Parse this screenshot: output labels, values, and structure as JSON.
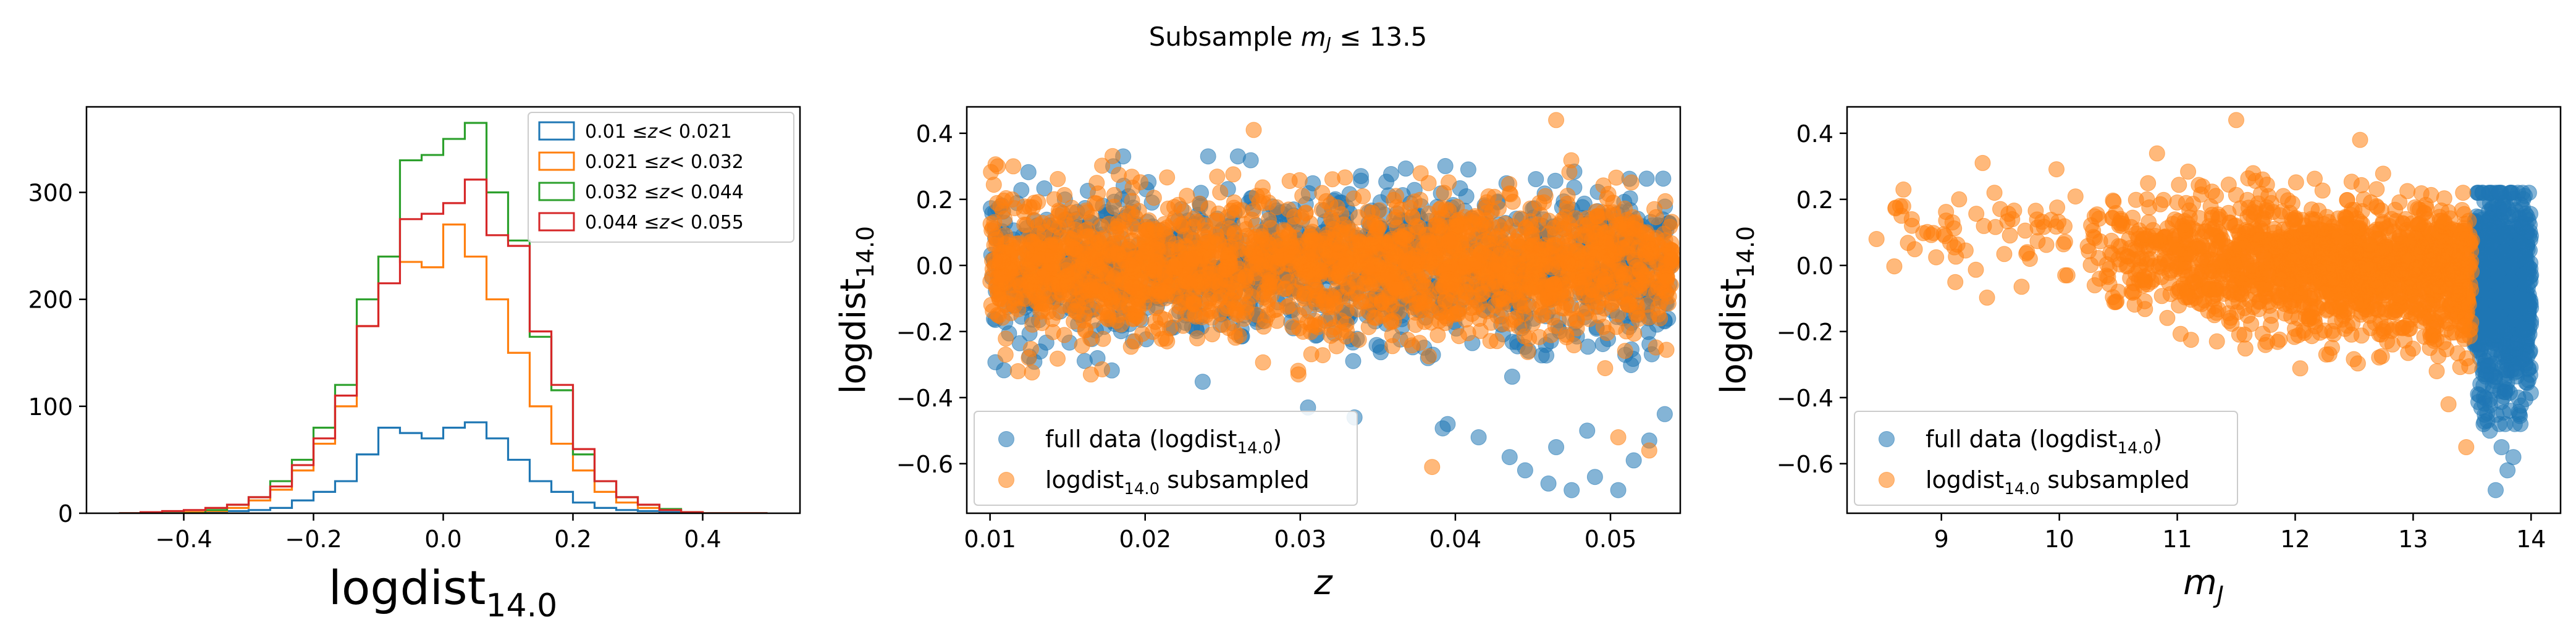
{
  "suptitle": {
    "prefix": "Subsample ",
    "var": "m",
    "sub": "J",
    "suffix": " ≤ 13.5"
  },
  "colors": {
    "blue": "#1f77b4",
    "orange": "#ff7f0e",
    "green": "#2ca02c",
    "red": "#d62728"
  },
  "chart_data": [
    {
      "type": "histogram",
      "xlabel": {
        "main": "logdist",
        "sub": "14.0"
      },
      "ylabel": "",
      "xlim": [
        -0.55,
        0.55
      ],
      "ylim": [
        0,
        380
      ],
      "xticks": [
        "−0.4",
        "−0.2",
        "0.0",
        "0.2",
        "0.4"
      ],
      "xtick_values": [
        -0.4,
        -0.2,
        0.0,
        0.2,
        0.4
      ],
      "yticks": [
        "0",
        "100",
        "200",
        "300"
      ],
      "ytick_values": [
        0,
        100,
        200,
        300
      ],
      "legend_position": "top-right",
      "bin_edges": [
        -0.5,
        -0.4667,
        -0.4333,
        -0.4,
        -0.3667,
        -0.3333,
        -0.3,
        -0.2667,
        -0.2333,
        -0.2,
        -0.1667,
        -0.1333,
        -0.1,
        -0.0667,
        -0.0333,
        0.0,
        0.0333,
        0.0667,
        0.1,
        0.1333,
        0.1667,
        0.2,
        0.2333,
        0.2667,
        0.3,
        0.3333,
        0.3667,
        0.4,
        0.4333,
        0.4667,
        0.5
      ],
      "series": [
        {
          "name": "0.01 ≤z< 0.021",
          "color": "#1f77b4",
          "counts": [
            0,
            0,
            0,
            0,
            1,
            2,
            3,
            5,
            12,
            20,
            30,
            55,
            80,
            75,
            70,
            80,
            85,
            70,
            50,
            30,
            20,
            10,
            5,
            3,
            2,
            1,
            0,
            0,
            0,
            0
          ]
        },
        {
          "name": "0.021 ≤z< 0.032",
          "color": "#ff7f0e",
          "counts": [
            0,
            0,
            0,
            1,
            2,
            5,
            12,
            22,
            40,
            65,
            100,
            175,
            240,
            235,
            230,
            270,
            240,
            200,
            150,
            100,
            65,
            40,
            20,
            10,
            5,
            3,
            1,
            0,
            0,
            0
          ]
        },
        {
          "name": "0.032 ≤z< 0.044",
          "color": "#2ca02c",
          "counts": [
            0,
            0,
            0,
            0,
            3,
            8,
            15,
            30,
            50,
            80,
            120,
            200,
            240,
            330,
            335,
            350,
            365,
            300,
            255,
            165,
            115,
            55,
            30,
            15,
            8,
            4,
            1,
            0,
            0,
            0
          ]
        },
        {
          "name": "0.044 ≤z< 0.055",
          "color": "#d62728",
          "counts": [
            0,
            1,
            2,
            3,
            5,
            8,
            15,
            25,
            45,
            70,
            110,
            175,
            215,
            275,
            280,
            290,
            312,
            260,
            250,
            170,
            120,
            60,
            30,
            15,
            8,
            3,
            1,
            0,
            0,
            0
          ]
        }
      ]
    },
    {
      "type": "scatter",
      "xlabel": {
        "main": "z",
        "sub": ""
      },
      "ylabel": {
        "main": "logdist",
        "sub": "14.0"
      },
      "xlim": [
        0.0085,
        0.0545
      ],
      "ylim": [
        -0.75,
        0.48
      ],
      "xticks": [
        "0.01",
        "0.02",
        "0.03",
        "0.04",
        "0.05"
      ],
      "xtick_values": [
        0.01,
        0.02,
        0.03,
        0.04,
        0.05
      ],
      "yticks": [
        "−0.6",
        "−0.4",
        "−0.2",
        "0.0",
        "0.2",
        "0.4"
      ],
      "ytick_values": [
        -0.6,
        -0.4,
        -0.2,
        0.0,
        0.2,
        0.4
      ],
      "legend_position": "lower-left",
      "legend": [
        {
          "label_main": "full data (logdist",
          "label_sub": "14.0",
          "label_tail": ")",
          "color": "#1f77b4"
        },
        {
          "label_main": "logdist",
          "label_sub": "14.0",
          "label_tail": " subsampled",
          "color": "#ff7f0e"
        }
      ],
      "series": [
        {
          "name": "full data",
          "color": "#1f77b4",
          "description_extent": {
            "x": [
              0.01,
              0.054
            ],
            "y": [
              -0.68,
              0.42
            ]
          },
          "outliers": [
            [
              0.0305,
              -0.43
            ],
            [
              0.0335,
              -0.46
            ],
            [
              0.0395,
              -0.48
            ],
            [
              0.0415,
              -0.52
            ],
            [
              0.0435,
              -0.58
            ],
            [
              0.0445,
              -0.62
            ],
            [
              0.046,
              -0.66
            ],
            [
              0.0475,
              -0.68
            ],
            [
              0.049,
              -0.64
            ],
            [
              0.0505,
              -0.68
            ],
            [
              0.0515,
              -0.59
            ],
            [
              0.0525,
              -0.53
            ],
            [
              0.0465,
              -0.55
            ],
            [
              0.0485,
              -0.5
            ],
            [
              0.0535,
              -0.45
            ]
          ]
        },
        {
          "name": "subsampled",
          "color": "#ff7f0e",
          "description_extent": {
            "x": [
              0.01,
              0.054
            ],
            "y": [
              -0.61,
              0.44
            ]
          },
          "outliers": [
            [
              0.0105,
              0.3
            ],
            [
              0.0115,
              0.3
            ],
            [
              0.011,
              -0.27
            ],
            [
              0.0118,
              -0.32
            ],
            [
              0.0165,
              -0.33
            ],
            [
              0.027,
              0.41
            ],
            [
              0.0465,
              0.44
            ],
            [
              0.0385,
              -0.61
            ],
            [
              0.0525,
              -0.56
            ],
            [
              0.0505,
              -0.52
            ]
          ]
        }
      ]
    },
    {
      "type": "scatter",
      "xlabel": {
        "main": "m",
        "sub": "J"
      },
      "ylabel": {
        "main": "logdist",
        "sub": "14.0"
      },
      "xlim": [
        8.2,
        14.25
      ],
      "ylim": [
        -0.75,
        0.48
      ],
      "xticks": [
        "9",
        "10",
        "11",
        "12",
        "13",
        "14"
      ],
      "xtick_values": [
        9,
        10,
        11,
        12,
        13,
        14
      ],
      "yticks": [
        "−0.6",
        "−0.4",
        "−0.2",
        "0.0",
        "0.2",
        "0.4"
      ],
      "ytick_values": [
        -0.6,
        -0.4,
        -0.2,
        0.0,
        0.2,
        0.4
      ],
      "legend_position": "lower-left",
      "legend": [
        {
          "label_main": "full data (logdist",
          "label_sub": "14.0",
          "label_tail": ")",
          "color": "#1f77b4"
        },
        {
          "label_main": "logdist",
          "label_sub": "14.0",
          "label_tail": " subsampled",
          "color": "#ff7f0e"
        }
      ],
      "series": [
        {
          "name": "full data",
          "color": "#1f77b4",
          "description_extent": {
            "x": [
              13.5,
              14.0
            ],
            "y": [
              -0.68,
              0.22
            ]
          },
          "outliers": [
            [
              13.75,
              -0.55
            ],
            [
              13.8,
              -0.62
            ],
            [
              13.7,
              -0.68
            ],
            [
              13.85,
              -0.58
            ],
            [
              13.9,
              -0.45
            ],
            [
              13.65,
              -0.5
            ]
          ]
        },
        {
          "name": "subsampled",
          "color": "#ff7f0e",
          "description_extent": {
            "x": [
              8.45,
              13.5
            ],
            "y": [
              -0.62,
              0.44
            ]
          },
          "outliers": [
            [
              8.45,
              0.08
            ],
            [
              8.65,
              0.18
            ],
            [
              8.75,
              0.12
            ],
            [
              9.15,
              0.2
            ],
            [
              9.35,
              0.31
            ],
            [
              9.45,
              0.22
            ],
            [
              9.6,
              0.14
            ],
            [
              9.75,
              0.02
            ],
            [
              10.05,
              -0.03
            ],
            [
              10.3,
              -0.06
            ],
            [
              11.5,
              0.44
            ],
            [
              12.55,
              0.38
            ],
            [
              13.2,
              -0.32
            ],
            [
              13.3,
              -0.42
            ],
            [
              13.45,
              -0.55
            ]
          ]
        }
      ]
    }
  ]
}
